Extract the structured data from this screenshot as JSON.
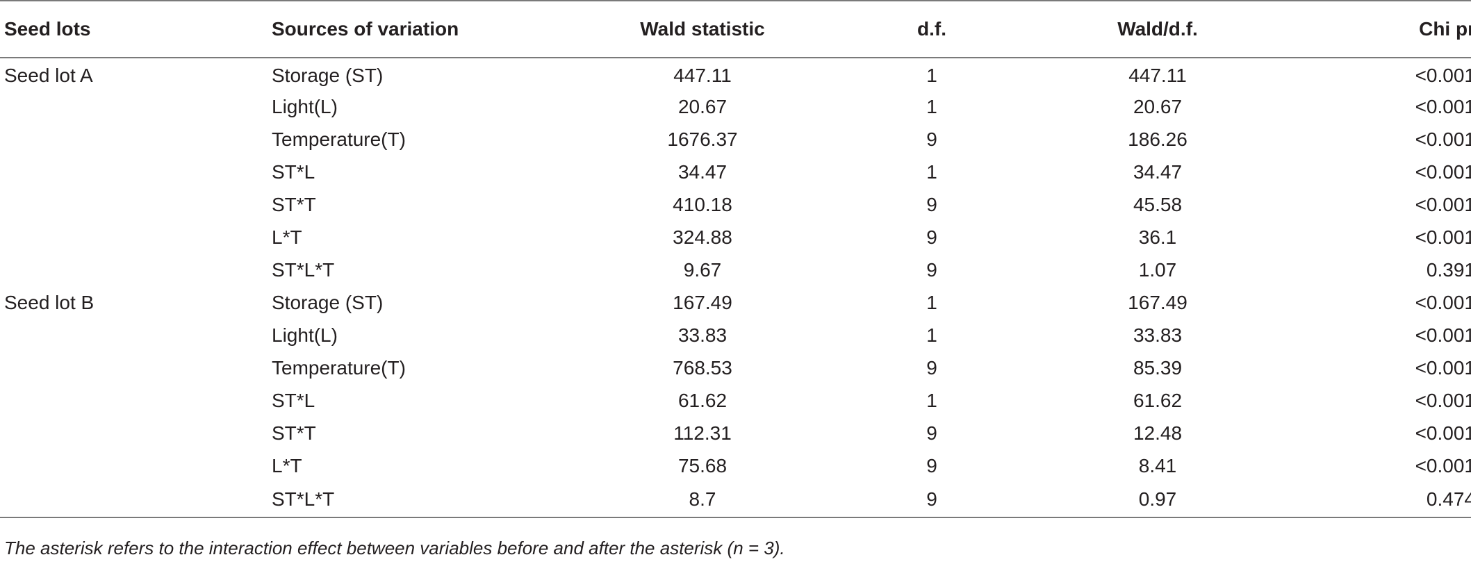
{
  "table": {
    "headers": [
      "Seed lots",
      "Sources of variation",
      "Wald statistic",
      "d.f.",
      "Wald/d.f.",
      "Chi pr"
    ],
    "rows": [
      [
        "Seed lot A",
        "Storage (ST)",
        "447.11",
        "1",
        "447.11",
        "<0.001"
      ],
      [
        "",
        "Light(L)",
        "20.67",
        "1",
        "20.67",
        "<0.001"
      ],
      [
        "",
        "Temperature(T)",
        "1676.37",
        "9",
        "186.26",
        "<0.001"
      ],
      [
        "",
        "ST*L",
        "34.47",
        "1",
        "34.47",
        "<0.001"
      ],
      [
        "",
        "ST*T",
        "410.18",
        "9",
        "45.58",
        "<0.001"
      ],
      [
        "",
        "L*T",
        "324.88",
        "9",
        "36.1",
        "<0.001"
      ],
      [
        "",
        "ST*L*T",
        "9.67",
        "9",
        "1.07",
        "0.391"
      ],
      [
        "Seed lot B",
        "Storage (ST)",
        "167.49",
        "1",
        "167.49",
        "<0.001"
      ],
      [
        "",
        "Light(L)",
        "33.83",
        "1",
        "33.83",
        "<0.001"
      ],
      [
        "",
        "Temperature(T)",
        "768.53",
        "9",
        "85.39",
        "<0.001"
      ],
      [
        "",
        "ST*L",
        "61.62",
        "1",
        "61.62",
        "<0.001"
      ],
      [
        "",
        "ST*T",
        "112.31",
        "9",
        "12.48",
        "<0.001"
      ],
      [
        "",
        "L*T",
        "75.68",
        "9",
        "8.41",
        "<0.001"
      ],
      [
        "",
        "ST*L*T",
        "8.7",
        "9",
        "0.97",
        "0.474"
      ]
    ]
  },
  "footnote": "The asterisk refers to the interaction effect between variables before and after the asterisk (n = 3)."
}
